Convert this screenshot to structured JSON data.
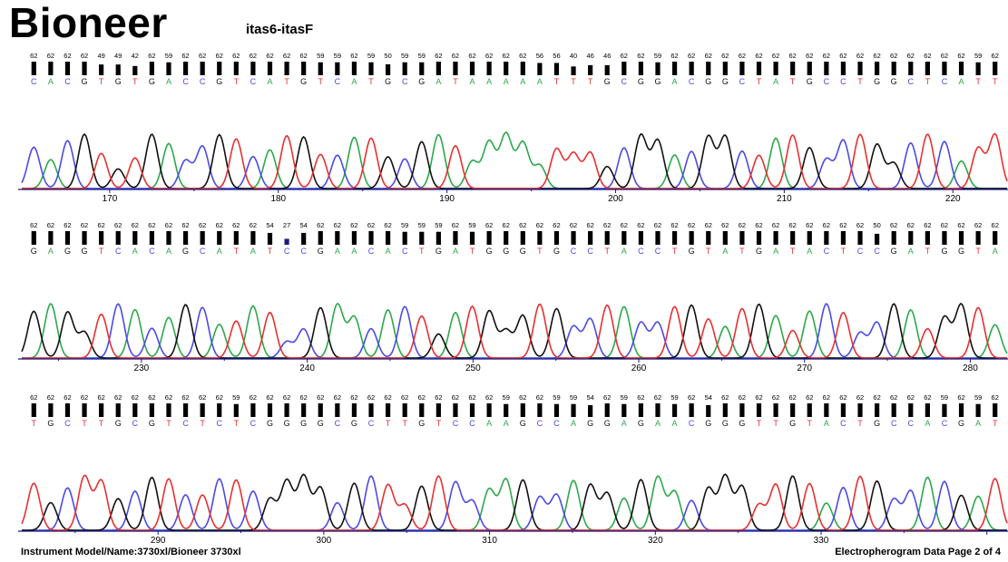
{
  "header": {
    "brand": "Bioneer",
    "sample_name": "itas6-itasF"
  },
  "footer": {
    "instrument": "Instrument Model/Name:3730xl/Bioneer 3730xl",
    "page": "Electropherogram Data Page 2 of 4"
  },
  "colors": {
    "A": "#2ca84a",
    "C": "#4a4ae8",
    "G": "#111111",
    "T": "#e83030"
  },
  "chart_data": [
    {
      "type": "line",
      "title": "",
      "xlabel": "",
      "ylabel": "",
      "base_range": [
        165,
        223
      ],
      "xticks": [
        170,
        180,
        190,
        200,
        210,
        220
      ],
      "sequence": [
        "C",
        "A",
        "C",
        "G",
        "T",
        "G",
        "T",
        "G",
        "A",
        "C",
        "C",
        "G",
        "T",
        "C",
        "A",
        "T",
        "G",
        "T",
        "C",
        "A",
        "T",
        "G",
        "C",
        "G",
        "A",
        "T",
        "A",
        "A",
        "A",
        "A",
        "A",
        "T",
        "T",
        "T",
        "G",
        "C",
        "G",
        "G",
        "A",
        "C",
        "G",
        "G",
        "C",
        "T",
        "A",
        "T",
        "G",
        "C",
        "C",
        "T",
        "G",
        "G",
        "C",
        "T",
        "C",
        "A",
        "T",
        "T"
      ],
      "quality": [
        62,
        62,
        62,
        62,
        49,
        49,
        42,
        62,
        59,
        62,
        62,
        62,
        62,
        62,
        62,
        62,
        62,
        59,
        59,
        62,
        59,
        50,
        59,
        59,
        62,
        62,
        62,
        62,
        62,
        62,
        56,
        56,
        40,
        46,
        46,
        62,
        62,
        59,
        62,
        62,
        62,
        62,
        62,
        62,
        62,
        62,
        62,
        62,
        62,
        62,
        62,
        62,
        62,
        62,
        62,
        62,
        59,
        62
      ]
    },
    {
      "type": "line",
      "title": "",
      "xlabel": "",
      "ylabel": "",
      "base_range": [
        223,
        282
      ],
      "xticks": [
        230,
        240,
        250,
        260,
        270,
        280
      ],
      "sequence": [
        "G",
        "A",
        "G",
        "G",
        "T",
        "C",
        "A",
        "C",
        "A",
        "G",
        "C",
        "A",
        "T",
        "A",
        "T",
        "C",
        "C",
        "G",
        "A",
        "A",
        "C",
        "A",
        "C",
        "T",
        "G",
        "A",
        "T",
        "G",
        "G",
        "G",
        "T",
        "G",
        "C",
        "C",
        "T",
        "A",
        "C",
        "C",
        "T",
        "G",
        "T",
        "A",
        "T",
        "G",
        "A",
        "T",
        "A",
        "C",
        "T",
        "C",
        "C",
        "G",
        "A",
        "T",
        "G",
        "G",
        "T",
        "A"
      ],
      "quality": [
        62,
        62,
        62,
        62,
        62,
        62,
        62,
        62,
        62,
        62,
        62,
        62,
        62,
        62,
        54,
        27,
        54,
        62,
        62,
        62,
        62,
        62,
        59,
        59,
        59,
        62,
        59,
        62,
        62,
        62,
        62,
        62,
        62,
        62,
        62,
        62,
        62,
        62,
        62,
        62,
        62,
        62,
        62,
        62,
        62,
        62,
        62,
        62,
        62,
        62,
        50,
        62,
        62,
        62,
        62,
        62,
        62,
        62
      ]
    },
    {
      "type": "line",
      "title": "",
      "xlabel": "",
      "ylabel": "",
      "base_range": [
        282,
        341
      ],
      "xticks": [
        290,
        300,
        310,
        320,
        330
      ],
      "sequence": [
        "T",
        "G",
        "C",
        "T",
        "T",
        "G",
        "C",
        "G",
        "T",
        "C",
        "T",
        "C",
        "T",
        "C",
        "G",
        "G",
        "G",
        "G",
        "C",
        "G",
        "C",
        "T",
        "T",
        "G",
        "T",
        "C",
        "C",
        "A",
        "A",
        "G",
        "C",
        "C",
        "A",
        "G",
        "G",
        "A",
        "G",
        "A",
        "A",
        "C",
        "G",
        "G",
        "G",
        "T",
        "T",
        "G",
        "T",
        "A",
        "C",
        "T",
        "G",
        "C",
        "C",
        "A",
        "C",
        "G",
        "A",
        "T"
      ],
      "quality": [
        62,
        62,
        62,
        62,
        62,
        62,
        62,
        62,
        62,
        62,
        62,
        62,
        59,
        62,
        62,
        62,
        62,
        62,
        62,
        62,
        62,
        62,
        62,
        62,
        62,
        62,
        62,
        62,
        59,
        62,
        62,
        59,
        59,
        54,
        62,
        59,
        62,
        62,
        59,
        62,
        54,
        62,
        62,
        62,
        62,
        62,
        62,
        62,
        62,
        62,
        62,
        62,
        62,
        62,
        59,
        62,
        59,
        62
      ]
    }
  ]
}
